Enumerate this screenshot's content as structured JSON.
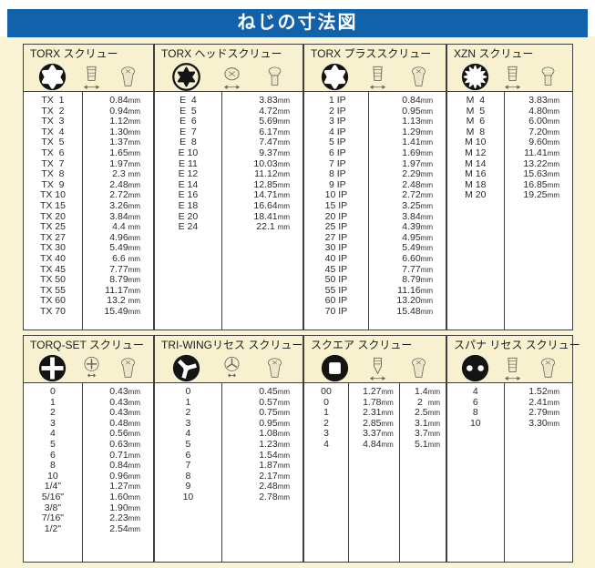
{
  "page": {
    "title": "ねじの寸法図"
  },
  "colors": {
    "banner_blue": "#1261ab",
    "header_cream": "#f8f1cf",
    "page_cream": "#faf3d6",
    "border_dark": "#3f3f3f",
    "icon_black": "#141414",
    "lineart_olive": "#6c6b54"
  },
  "sections": [
    {
      "id": "torx",
      "title": "TORX スクリュー",
      "icons": [
        "torx-socket-icon",
        "screw-side-view-icon",
        "screw-head-icon"
      ],
      "rows": [
        [
          "TX  1",
          "0.84mm"
        ],
        [
          "TX  2",
          "0.94mm"
        ],
        [
          "TX  3",
          "1.12mm"
        ],
        [
          "TX  4",
          "1.30mm"
        ],
        [
          "TX  5",
          "1.37mm"
        ],
        [
          "TX  6",
          "1.65mm"
        ],
        [
          "TX  7",
          "1.97mm"
        ],
        [
          "TX  8",
          "2.3 mm"
        ],
        [
          "TX  9",
          "2.48mm"
        ],
        [
          "TX 10",
          "2.72mm"
        ],
        [
          "TX 15",
          "3.26mm"
        ],
        [
          "TX 20",
          "3.84mm"
        ],
        [
          "TX 25",
          "4.4 mm"
        ],
        [
          "TX 27",
          "4.96mm"
        ],
        [
          "TX 30",
          "5.49mm"
        ],
        [
          "TX 40",
          "6.6 mm"
        ],
        [
          "TX 45",
          "7.77mm"
        ],
        [
          "TX 50",
          "8.79mm"
        ],
        [
          "TX 55",
          "11.17mm"
        ],
        [
          "TX 60",
          "13.2 mm"
        ],
        [
          "TX 70",
          "15.49mm"
        ]
      ]
    },
    {
      "id": "torx-head",
      "title": "TORX ヘッドスクリュー",
      "icons": [
        "torx-external-icon",
        "bolt-head-side-icon",
        "bolt-head-icon"
      ],
      "rows": [
        [
          "E  4",
          "3.83mm"
        ],
        [
          "E  5",
          "4.72mm"
        ],
        [
          "E  6",
          "5.69mm"
        ],
        [
          "E  7",
          "6.17mm"
        ],
        [
          "E  8",
          "7.47mm"
        ],
        [
          "E 10",
          "9.37mm"
        ],
        [
          "E 11",
          "10.03mm"
        ],
        [
          "E 12",
          "11.12mm"
        ],
        [
          "E 14",
          "12.85mm"
        ],
        [
          "E 16",
          "14.71mm"
        ],
        [
          "E 18",
          "16.64mm"
        ],
        [
          "E 20",
          "18.41mm"
        ],
        [
          "E 24",
          "22.1 mm"
        ]
      ]
    },
    {
      "id": "torx-plus",
      "title": "TORX プラススクリュー",
      "icons": [
        "torx-plus-socket-icon",
        "screw-side-view-icon",
        "screw-head-icon"
      ],
      "rows": [
        [
          " 1 IP",
          "0.84mm"
        ],
        [
          " 2 IP",
          "0.95mm"
        ],
        [
          " 3 IP",
          "1.13mm"
        ],
        [
          " 4 IP",
          "1.29mm"
        ],
        [
          " 5 IP",
          "1.41mm"
        ],
        [
          " 6 IP",
          "1.69mm"
        ],
        [
          " 7 IP",
          "1.97mm"
        ],
        [
          " 8 IP",
          "2.29mm"
        ],
        [
          " 9 IP",
          "2.48mm"
        ],
        [
          "10 IP",
          "2.72mm"
        ],
        [
          "15 IP",
          "3.25mm"
        ],
        [
          "20 IP",
          "3.84mm"
        ],
        [
          "25 IP",
          "4.39mm"
        ],
        [
          "27 IP",
          "4.95mm"
        ],
        [
          "30 IP",
          "5.49mm"
        ],
        [
          "40 IP",
          "6.60mm"
        ],
        [
          "45 IP",
          "7.77mm"
        ],
        [
          "50 IP",
          "8.79mm"
        ],
        [
          "55 IP",
          "11.16mm"
        ],
        [
          "60 IP",
          "13.20mm"
        ],
        [
          "70 IP",
          "15.48mm"
        ]
      ]
    },
    {
      "id": "xzn",
      "title": "XZN スクリュー",
      "icons": [
        "xzn-spline-icon",
        "screw-side-view-icon",
        "bolt-head-icon"
      ],
      "rows": [
        [
          "M  4",
          "3.83mm"
        ],
        [
          "M  5",
          "4.80mm"
        ],
        [
          "M  6",
          "6.00mm"
        ],
        [
          "M  8",
          "7.20mm"
        ],
        [
          "M 10",
          "9.60mm"
        ],
        [
          "M 12",
          "11.41mm"
        ],
        [
          "M 14",
          "13.22mm"
        ],
        [
          "M 16",
          "15.63mm"
        ],
        [
          "M 18",
          "16.85mm"
        ],
        [
          "M 20",
          "19.25mm"
        ]
      ]
    },
    {
      "id": "torq-set",
      "title": "TORQ-SET スクリュー",
      "icons": [
        "torq-set-recess-icon",
        "cross-measure-icon",
        "screw-head-icon"
      ],
      "rows": [
        [
          "0",
          "0.43mm"
        ],
        [
          "1",
          "0.43mm"
        ],
        [
          "2",
          "0.43mm"
        ],
        [
          "3",
          "0.48mm"
        ],
        [
          "4",
          "0.56mm"
        ],
        [
          "5",
          "0.63mm"
        ],
        [
          "6",
          "0.71mm"
        ],
        [
          "8",
          "0.84mm"
        ],
        [
          "10",
          "0.96mm"
        ],
        [
          "1/4\"",
          "1.27mm"
        ],
        [
          "5/16\"",
          "1.60mm"
        ],
        [
          "3/8\"",
          "1.90mm"
        ],
        [
          "7/16\"",
          "2.23mm"
        ],
        [
          "1/2\"",
          "2.54mm"
        ]
      ]
    },
    {
      "id": "tri-wing",
      "title": "TRI-WINGリセス スクリュー",
      "icons": [
        "tri-wing-recess-icon",
        "tri-wing-measure-icon",
        "screw-head-icon"
      ],
      "rows": [
        [
          "0",
          "0.45mm"
        ],
        [
          "1",
          "0.57mm"
        ],
        [
          "2",
          "0.75mm"
        ],
        [
          "3",
          "0.95mm"
        ],
        [
          "4",
          "1.08mm"
        ],
        [
          "5",
          "1.23mm"
        ],
        [
          "6",
          "1.54mm"
        ],
        [
          "7",
          "1.87mm"
        ],
        [
          "8",
          "2.17mm"
        ],
        [
          "9",
          "2.48mm"
        ],
        [
          "10",
          "2.78mm"
        ]
      ]
    },
    {
      "id": "square",
      "title": "スクエア スクリュー",
      "icons": [
        "square-recess-icon",
        "screw-tip-side-icon",
        "screw-head-icon"
      ],
      "rows": [
        [
          "00",
          "1.27mm",
          "1.4mm"
        ],
        [
          "0",
          "1.78mm",
          "2  mm"
        ],
        [
          "1",
          "2.31mm",
          "2.5mm"
        ],
        [
          "2",
          "2.85mm",
          "3.1mm"
        ],
        [
          "3",
          "3.37mm",
          "3.7mm"
        ],
        [
          "4",
          "4.84mm",
          "5.1mm"
        ]
      ]
    },
    {
      "id": "spanner",
      "title": "スパナ リセス スクリュー",
      "icons": [
        "spanner-recess-icon",
        "screw-side-view-icon",
        "screw-head-icon"
      ],
      "rows": [
        [
          "4",
          "1.52mm"
        ],
        [
          "6",
          "2.41mm"
        ],
        [
          "8",
          "2.79mm"
        ],
        [
          "10",
          "3.30mm"
        ]
      ]
    }
  ]
}
